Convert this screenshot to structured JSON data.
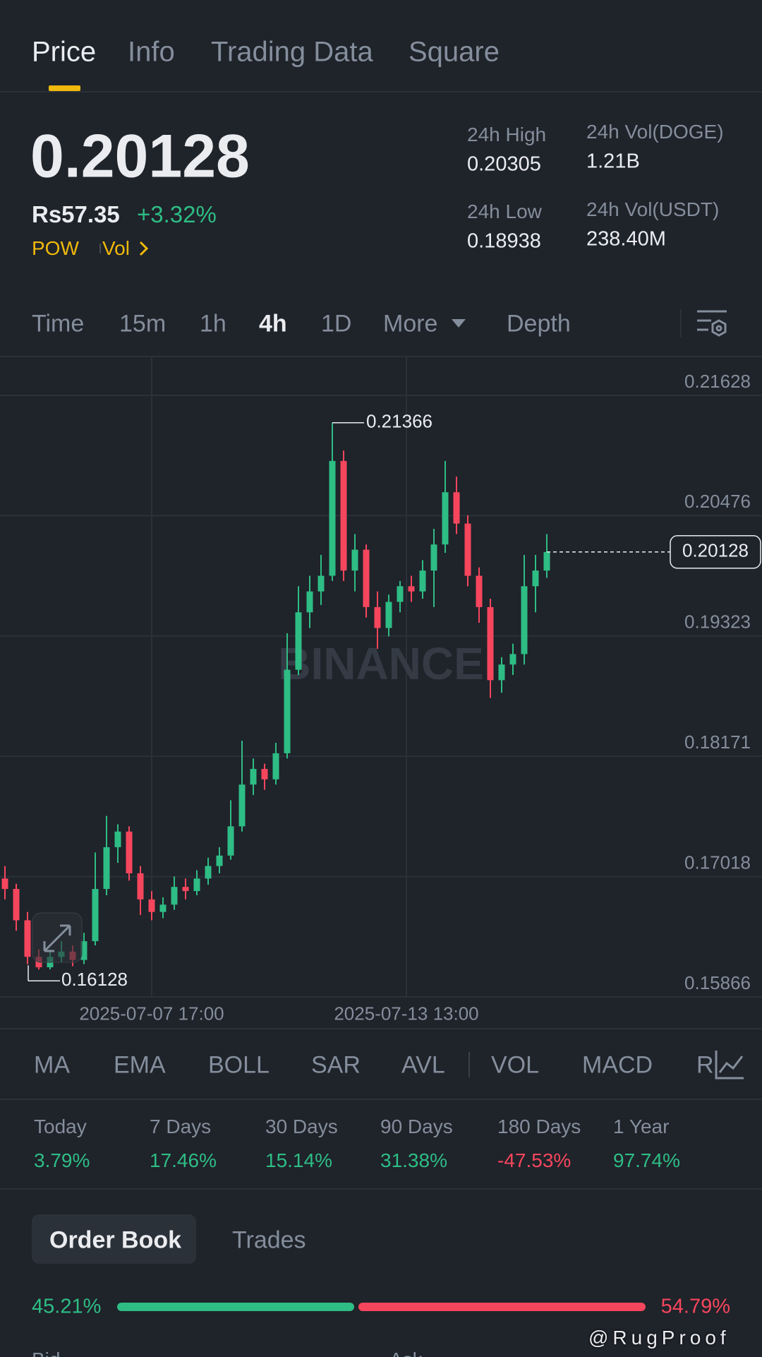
{
  "tabs": [
    "Price",
    "Info",
    "Trading Data",
    "Square"
  ],
  "active_tab": 0,
  "header": {
    "price": "0.20128",
    "fiat": "Rs57.35",
    "change": "+3.32%",
    "tags": [
      "POW",
      "Vol"
    ],
    "stats": [
      {
        "label": "24h High",
        "value": "0.20305"
      },
      {
        "label": "24h Vol(DOGE)",
        "value": "1.21B"
      },
      {
        "label": "24h Low",
        "value": "0.18938"
      },
      {
        "label": "24h Vol(USDT)",
        "value": "238.40M"
      }
    ]
  },
  "intervals": [
    "Time",
    "15m",
    "1h",
    "4h",
    "1D",
    "More",
    "Depth"
  ],
  "active_interval": 3,
  "chart_data": {
    "type": "candlestick",
    "ohlc": [
      [
        0.17,
        0.1712,
        0.168,
        0.169
      ],
      [
        0.169,
        0.1695,
        0.165,
        0.166
      ],
      [
        0.166,
        0.1668,
        0.1618,
        0.1625
      ],
      [
        0.1625,
        0.1632,
        0.16128,
        0.1615
      ],
      [
        0.1615,
        0.1632,
        0.1613,
        0.1625
      ],
      [
        0.1625,
        0.164,
        0.162,
        0.163
      ],
      [
        0.163,
        0.1636,
        0.1616,
        0.1622
      ],
      [
        0.1622,
        0.1648,
        0.1618,
        0.164
      ],
      [
        0.164,
        0.1725,
        0.1636,
        0.169
      ],
      [
        0.169,
        0.176,
        0.1684,
        0.173
      ],
      [
        0.173,
        0.1752,
        0.1715,
        0.1745
      ],
      [
        0.1745,
        0.175,
        0.1698,
        0.1705
      ],
      [
        0.1705,
        0.1712,
        0.1665,
        0.168
      ],
      [
        0.168,
        0.1688,
        0.166,
        0.1668
      ],
      [
        0.1668,
        0.1682,
        0.1662,
        0.1675
      ],
      [
        0.1675,
        0.1702,
        0.167,
        0.1692
      ],
      [
        0.1692,
        0.17,
        0.168,
        0.1688
      ],
      [
        0.1688,
        0.1708,
        0.1684,
        0.17
      ],
      [
        0.17,
        0.172,
        0.1694,
        0.1712
      ],
      [
        0.1712,
        0.173,
        0.1705,
        0.1722
      ],
      [
        0.1722,
        0.1775,
        0.1718,
        0.175
      ],
      [
        0.175,
        0.1832,
        0.1745,
        0.179
      ],
      [
        0.179,
        0.1815,
        0.178,
        0.1805
      ],
      [
        0.1805,
        0.181,
        0.1785,
        0.1795
      ],
      [
        0.1795,
        0.183,
        0.179,
        0.182
      ],
      [
        0.182,
        0.1935,
        0.1815,
        0.19
      ],
      [
        0.19,
        0.198,
        0.1895,
        0.1955
      ],
      [
        0.1955,
        0.199,
        0.194,
        0.1975
      ],
      [
        0.1975,
        0.201,
        0.1962,
        0.199
      ],
      [
        0.199,
        0.21366,
        0.1985,
        0.21
      ],
      [
        0.21,
        0.211,
        0.1985,
        0.1995
      ],
      [
        0.1995,
        0.203,
        0.1975,
        0.2015
      ],
      [
        0.2015,
        0.202,
        0.195,
        0.196
      ],
      [
        0.196,
        0.1975,
        0.192,
        0.194
      ],
      [
        0.194,
        0.1972,
        0.1932,
        0.1965
      ],
      [
        0.1965,
        0.1985,
        0.1955,
        0.198
      ],
      [
        0.198,
        0.199,
        0.1965,
        0.1975
      ],
      [
        0.1975,
        0.2005,
        0.1968,
        0.1995
      ],
      [
        0.1995,
        0.2035,
        0.196,
        0.202
      ],
      [
        0.202,
        0.21,
        0.2012,
        0.207
      ],
      [
        0.207,
        0.2085,
        0.203,
        0.204
      ],
      [
        0.204,
        0.2048,
        0.198,
        0.199
      ],
      [
        0.199,
        0.1998,
        0.1945,
        0.196
      ],
      [
        0.196,
        0.1968,
        0.1873,
        0.189
      ],
      [
        0.189,
        0.1912,
        0.1878,
        0.1905
      ],
      [
        0.1905,
        0.1925,
        0.1895,
        0.1915
      ],
      [
        0.1915,
        0.201,
        0.1905,
        0.198
      ],
      [
        0.198,
        0.201,
        0.1955,
        0.1995
      ],
      [
        0.1995,
        0.203,
        0.1988,
        0.20128
      ]
    ],
    "ylim": [
      0.15866,
      0.22
    ],
    "yticks": [
      0.21628,
      0.20476,
      0.19323,
      0.18171,
      0.17018,
      0.15866
    ],
    "x_labels": [
      "2025-07-07 17:00",
      "2025-07-13 13:00"
    ],
    "up_color": "#2ebd85",
    "down_color": "#f6465d",
    "grid": true,
    "watermark": "BINANCE"
  },
  "indicators": [
    "MA",
    "EMA",
    "BOLL",
    "SAR",
    "AVL",
    "VOL",
    "MACD",
    "R"
  ],
  "performance": [
    {
      "label": "Today",
      "value": "3.79%"
    },
    {
      "label": "7 Days",
      "value": "17.46%"
    },
    {
      "label": "30 Days",
      "value": "15.14%"
    },
    {
      "label": "90 Days",
      "value": "31.38%"
    },
    {
      "label": "180 Days",
      "value": "-47.53%"
    },
    {
      "label": "1 Year",
      "value": "97.74%"
    }
  ],
  "order_book": {
    "tabs": [
      "Order Book",
      "Trades"
    ],
    "bid": {
      "value": 45.21,
      "label": "45.21%"
    },
    "ask": {
      "value": 54.79,
      "label": "54.79%"
    },
    "columns": [
      "Bid",
      "Ask"
    ]
  },
  "watermark": "@RugProof"
}
